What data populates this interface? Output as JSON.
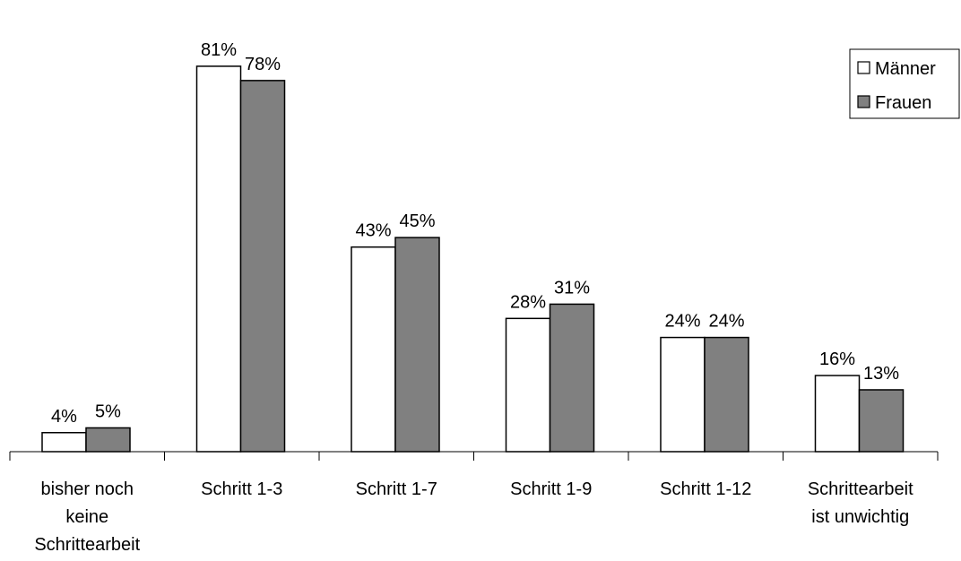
{
  "chart_data": {
    "type": "bar",
    "categories": [
      [
        "bisher noch",
        "keine",
        "Schrittearbeit"
      ],
      [
        "Schritt 1-3"
      ],
      [
        "Schritt 1-7"
      ],
      [
        "Schritt 1-9"
      ],
      [
        "Schritt 1-12"
      ],
      [
        "Schrittearbeit",
        "ist unwichtig"
      ]
    ],
    "series": [
      {
        "name": "Männer",
        "values": [
          4,
          81,
          43,
          28,
          24,
          16
        ],
        "labels": [
          "4%",
          "81%",
          "43%",
          "28%",
          "24%",
          "16%"
        ],
        "color": "#ffffff"
      },
      {
        "name": "Frauen",
        "values": [
          5,
          78,
          45,
          31,
          24,
          13
        ],
        "labels": [
          "5%",
          "78%",
          "45%",
          "31%",
          "24%",
          "13%"
        ],
        "color": "#808080"
      }
    ],
    "ylim": [
      0,
      84
    ],
    "grid": false,
    "legend_position": "top-right"
  }
}
